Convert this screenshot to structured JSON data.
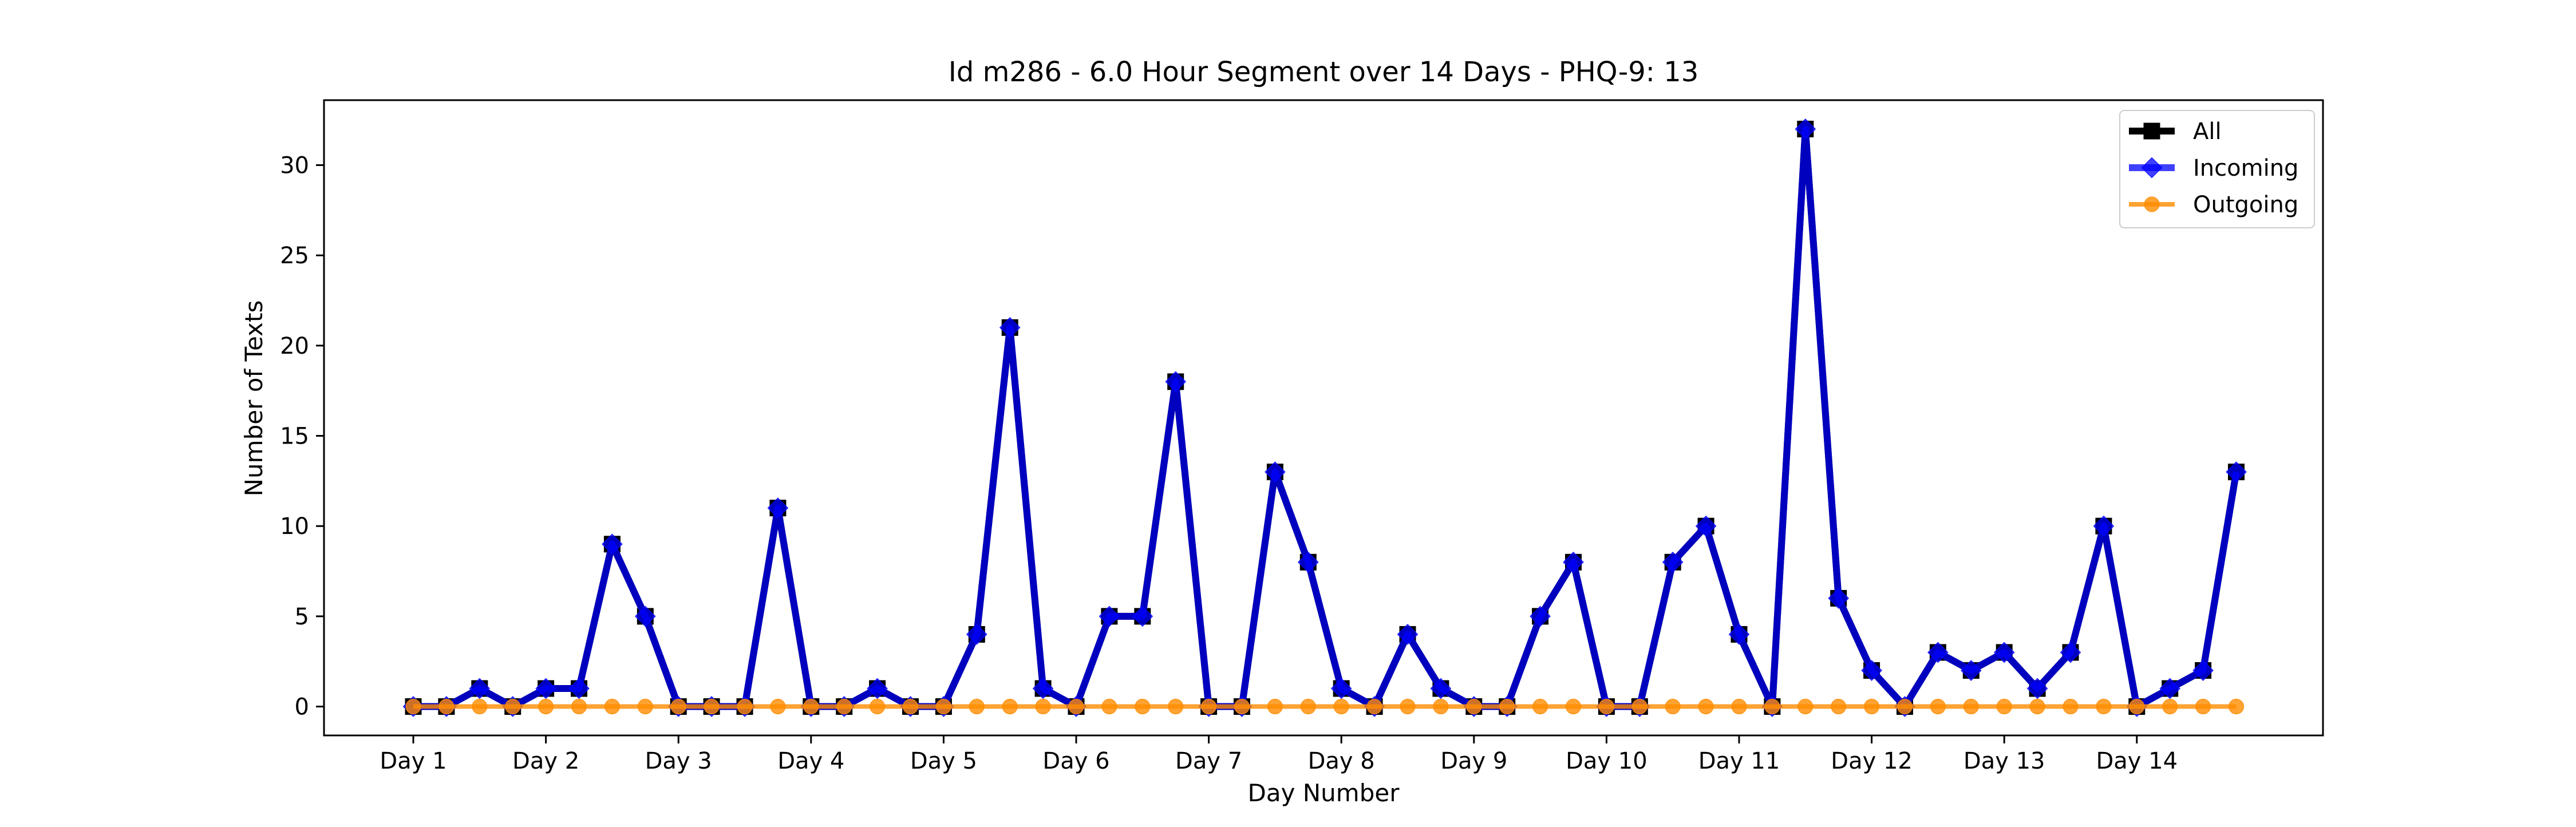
{
  "chart_data": {
    "type": "line",
    "title": "Id m286 - 6.0 Hour Segment over 14 Days - PHQ-9: 13",
    "xlabel": "Day Number",
    "ylabel": "Number of Texts",
    "x_tick_labels": [
      "Day 1",
      "Day 2",
      "Day 3",
      "Day 4",
      "Day 5",
      "Day 6",
      "Day 7",
      "Day 8",
      "Day 9",
      "Day 10",
      "Day 11",
      "Day 12",
      "Day 13",
      "Day 14"
    ],
    "y_ticks": [
      0,
      5,
      10,
      15,
      20,
      25,
      30
    ],
    "ylim": [
      -1.6,
      33.6
    ],
    "grid": false,
    "legend_position": "top-right",
    "series": [
      {
        "name": "All",
        "color": "#000000",
        "marker": "square",
        "values": [
          0,
          0,
          1,
          0,
          1,
          1,
          9,
          5,
          0,
          0,
          0,
          11,
          0,
          0,
          1,
          0,
          0,
          4,
          21,
          1,
          0,
          5,
          5,
          18,
          0,
          0,
          13,
          8,
          1,
          0,
          4,
          1,
          0,
          0,
          5,
          8,
          0,
          0,
          8,
          10,
          4,
          0,
          32,
          6,
          2,
          0,
          3,
          2,
          3,
          1,
          3,
          10,
          0,
          1,
          2,
          13
        ]
      },
      {
        "name": "Incoming",
        "color": "#0000ff",
        "marker": "diamond",
        "values": [
          0,
          0,
          1,
          0,
          1,
          1,
          9,
          5,
          0,
          0,
          0,
          11,
          0,
          0,
          1,
          0,
          0,
          4,
          21,
          1,
          0,
          5,
          5,
          18,
          0,
          0,
          13,
          8,
          1,
          0,
          4,
          1,
          0,
          0,
          5,
          8,
          0,
          0,
          8,
          10,
          4,
          0,
          32,
          6,
          2,
          0,
          3,
          2,
          3,
          1,
          3,
          10,
          0,
          1,
          2,
          13
        ]
      },
      {
        "name": "Outgoing",
        "color": "#ff8c00",
        "marker": "circle",
        "values": [
          0,
          0,
          0,
          0,
          0,
          0,
          0,
          0,
          0,
          0,
          0,
          0,
          0,
          0,
          0,
          0,
          0,
          0,
          0,
          0,
          0,
          0,
          0,
          0,
          0,
          0,
          0,
          0,
          0,
          0,
          0,
          0,
          0,
          0,
          0,
          0,
          0,
          0,
          0,
          0,
          0,
          0,
          0,
          0,
          0,
          0,
          0,
          0,
          0,
          0,
          0,
          0,
          0,
          0,
          0,
          0
        ]
      }
    ]
  }
}
